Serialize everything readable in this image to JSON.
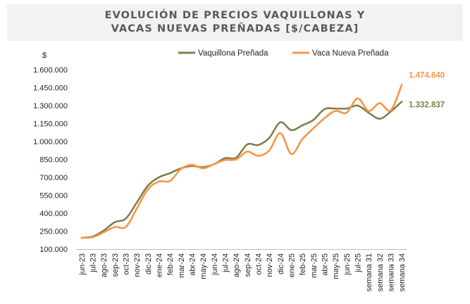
{
  "chart_data": {
    "type": "line",
    "title": "EVOLUCIÓN DE PRECIOS VAQUILLONAS Y VACAS NUEVAS PREÑADAS [$/CABEZA]",
    "title_lines": [
      "EVOLUCIÓN DE PRECIOS VAQUILLONAS Y",
      "VACAS NUEVAS PREÑADAS [$/CABEZA]"
    ],
    "ylabel": "$",
    "xlabel": "",
    "ylim": [
      100000,
      1600000
    ],
    "yticks": [
      100000,
      250000,
      400000,
      550000,
      700000,
      850000,
      1000000,
      1150000,
      1300000,
      1450000,
      1600000
    ],
    "ytick_labels": [
      "100.000",
      "250.000",
      "400.000",
      "550.000",
      "700.000",
      "850.000",
      "1.000.000",
      "1.150.000",
      "1.300.000",
      "1.450.000",
      "1.600.000"
    ],
    "categories": [
      "jun-23",
      "jul-23",
      "ago-23",
      "sep-23",
      "oct-23",
      "nov-23",
      "dic-23",
      "ene-24",
      "feb-24",
      "mar-24",
      "abr-24",
      "may-24",
      "jun-24",
      "jul-24",
      "ago-24",
      "sep-24",
      "oct-24",
      "nov-24",
      "dic-24",
      "ene-25",
      "feb-25",
      "mar-25",
      "abr-25",
      "may-25",
      "jun-25",
      "jul-25",
      "semana 31",
      "semana 32",
      "semana 33",
      "semana 34"
    ],
    "series": [
      {
        "name": "Vaquillona Preñada",
        "color": "#7f7f50",
        "values": [
          195000,
          205000,
          255000,
          325000,
          355000,
          490000,
          630000,
          700000,
          735000,
          775000,
          795000,
          785000,
          810000,
          860000,
          865000,
          975000,
          970000,
          1030000,
          1160000,
          1095000,
          1135000,
          1180000,
          1270000,
          1275000,
          1275000,
          1300000,
          1240000,
          1190000,
          1250000,
          1332837
        ],
        "end_label": "1.332.837"
      },
      {
        "name": "Vaca Nueva Preñada",
        "color": "#f79646",
        "values": [
          195000,
          200000,
          240000,
          285000,
          285000,
          440000,
          600000,
          665000,
          670000,
          770000,
          805000,
          775000,
          810000,
          845000,
          850000,
          915000,
          880000,
          925000,
          1070000,
          895000,
          1020000,
          1110000,
          1195000,
          1255000,
          1240000,
          1360000,
          1255000,
          1320000,
          1260000,
          1474640
        ],
        "end_label": "1.474.640"
      }
    ],
    "grid": false,
    "legend": "top"
  }
}
